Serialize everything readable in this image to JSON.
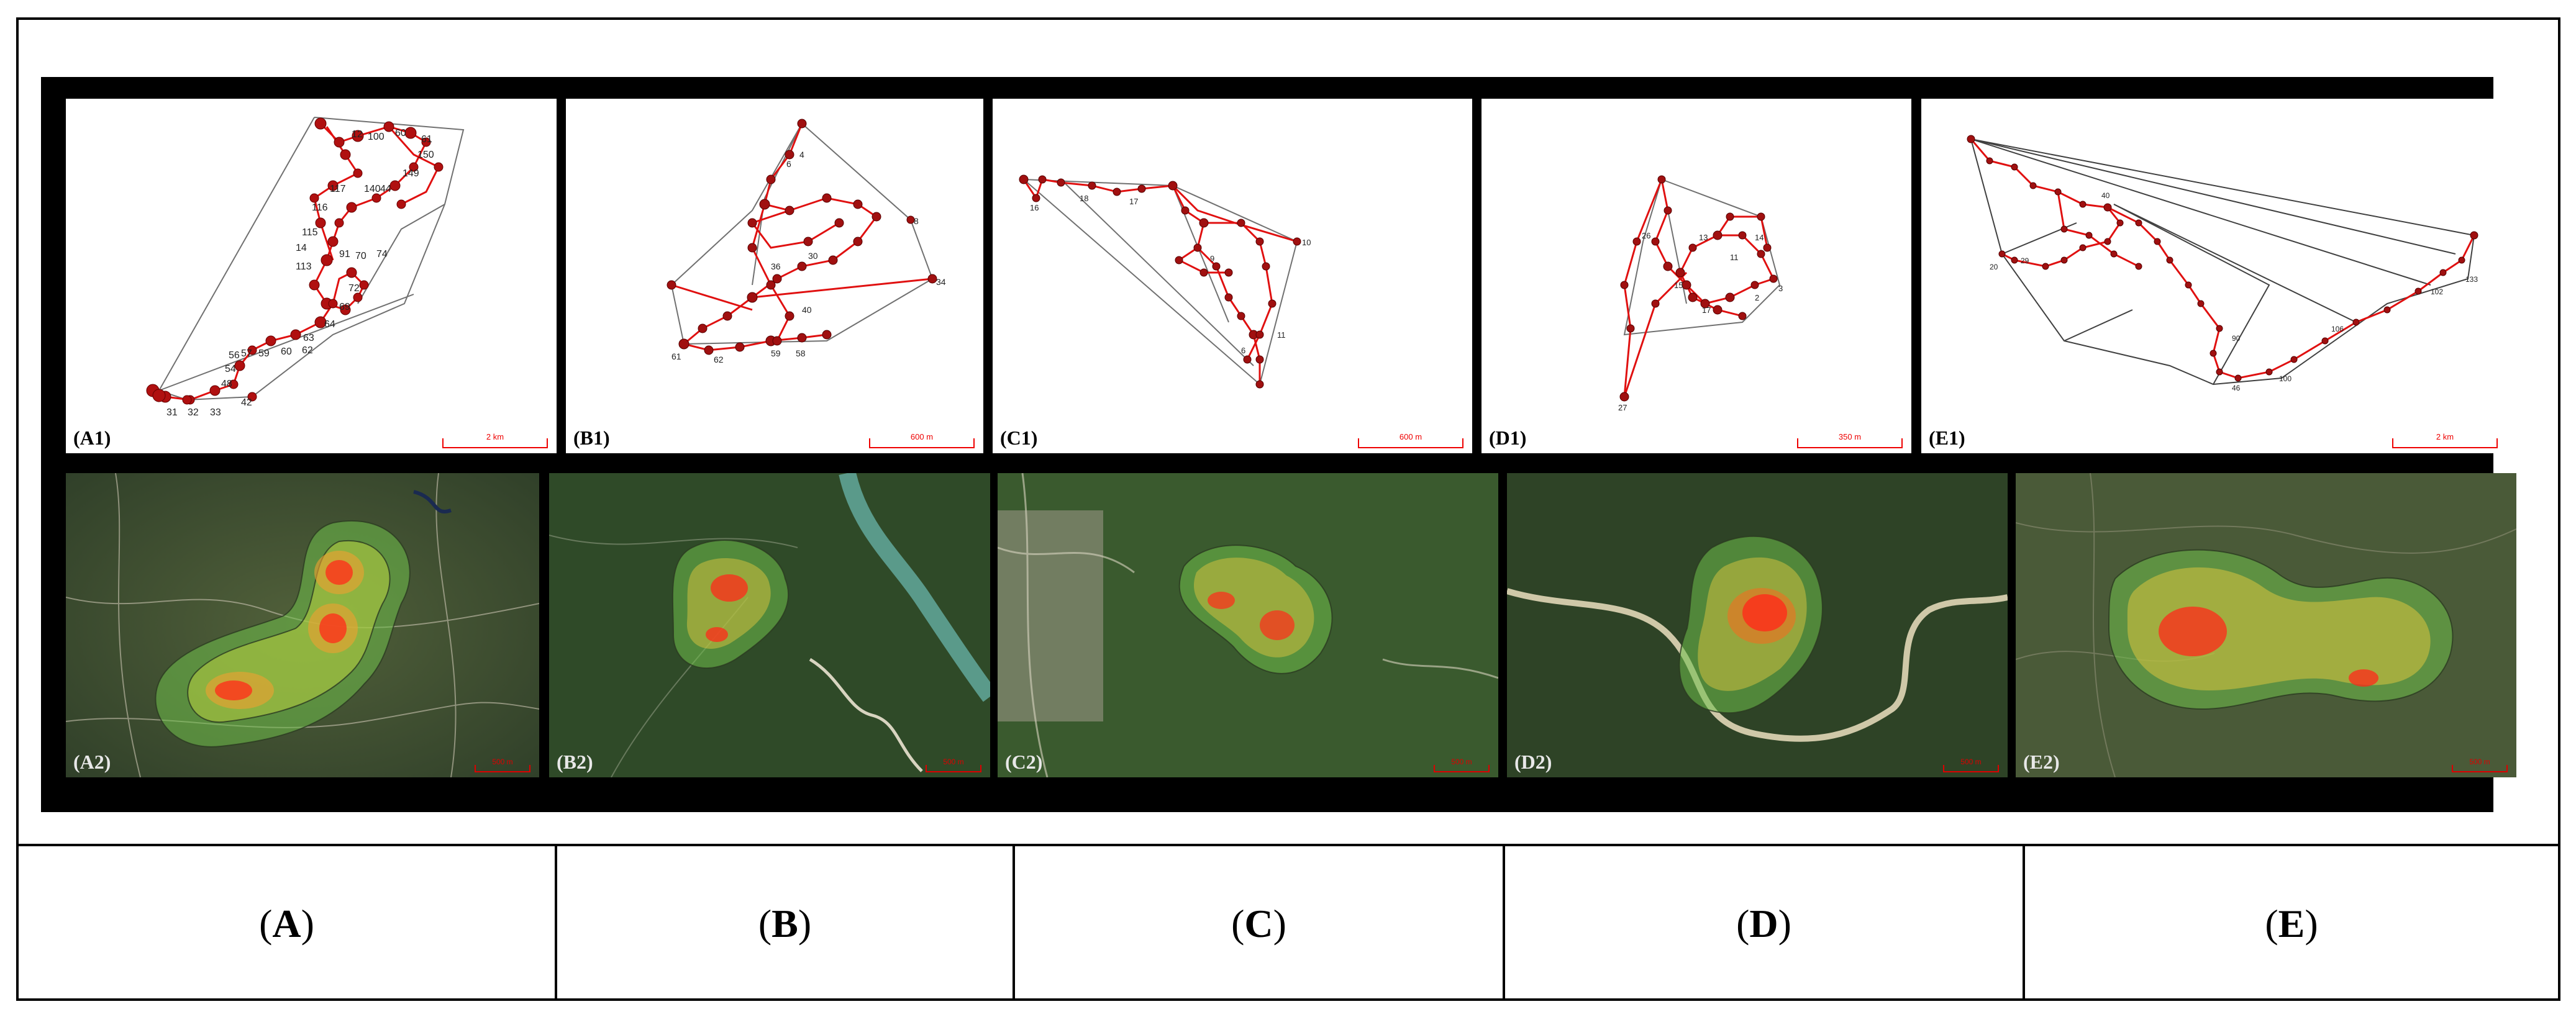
{
  "figure": {
    "top_panels": [
      {
        "id": "A1",
        "label": "(A1)",
        "scale": "2 km",
        "node_labels": [
          "12",
          "100",
          "60",
          "61",
          "150",
          "149",
          "140",
          "44",
          "117",
          "116",
          "115",
          "113",
          "14",
          "91",
          "70",
          "74",
          "72",
          "69",
          "64",
          "63",
          "62",
          "60",
          "59",
          "57",
          "56",
          "54",
          "48",
          "42",
          "33",
          "32",
          "31"
        ]
      },
      {
        "id": "B1",
        "label": "(B1)",
        "scale": "600 m",
        "node_labels": [
          "6",
          "4",
          "8",
          "34",
          "36",
          "30",
          "40",
          "61",
          "62",
          "59",
          "58"
        ]
      },
      {
        "id": "C1",
        "label": "(C1)",
        "scale": "600 m",
        "node_labels": [
          "16",
          "18",
          "17",
          "10",
          "9",
          "11",
          "6"
        ]
      },
      {
        "id": "D1",
        "label": "(D1)",
        "scale": "350 m",
        "node_labels": [
          "26",
          "13",
          "14",
          "11",
          "15",
          "17",
          "3",
          "2",
          "27"
        ]
      },
      {
        "id": "E1",
        "label": "(E1)",
        "scale": "2 km",
        "node_labels": [
          "40",
          "29",
          "20",
          "133",
          "102",
          "106",
          "90",
          "100",
          "46"
        ]
      }
    ],
    "bottom_panels": [
      {
        "id": "A2",
        "label": "(A2)",
        "scale": "500 m"
      },
      {
        "id": "B2",
        "label": "(B2)",
        "scale": "500 m"
      },
      {
        "id": "C2",
        "label": "(C2)",
        "scale": "500 m"
      },
      {
        "id": "D2",
        "label": "(D2)",
        "scale": "500 m"
      },
      {
        "id": "E2",
        "label": "(E2)",
        "scale": "500 m"
      }
    ],
    "columns": [
      {
        "open": "(",
        "letter": "A",
        "close": ")"
      },
      {
        "open": "(",
        "letter": "B",
        "close": ")"
      },
      {
        "open": "(",
        "letter": "C",
        "close": ")"
      },
      {
        "open": "(",
        "letter": "D",
        "close": ")"
      },
      {
        "open": "(",
        "letter": "E",
        "close": ")"
      }
    ],
    "colors": {
      "track_red": "#e01010",
      "hull_gray": "#707070",
      "kde_core": "#ff2a1a",
      "kde_mid": "#f0c030",
      "kde_outer": "#7ac050",
      "forest": "#2f4a28"
    }
  }
}
